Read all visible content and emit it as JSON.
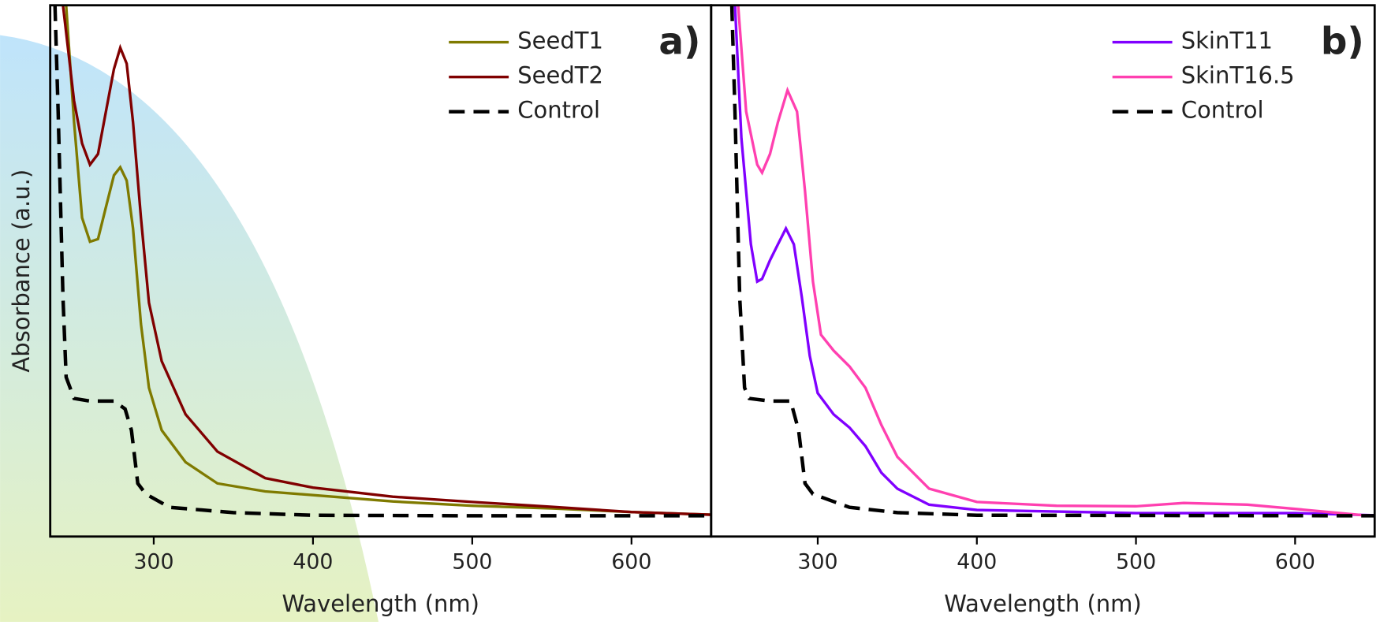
{
  "chart_data": [
    {
      "type": "line",
      "panel_label": "a)",
      "xlabel": "Wavelength (nm)",
      "ylabel": "Absorbance (a.u.)",
      "xlim": [
        235,
        650
      ],
      "ylim": [
        0,
        100
      ],
      "xticks": [
        300,
        400,
        500,
        600
      ],
      "legend": "upper right",
      "series": [
        {
          "name": "SeedT1",
          "color": "#7f7a00",
          "style": "solid",
          "x": [
            245,
            250,
            255,
            260,
            265,
            270,
            275,
            279,
            283,
            287,
            292,
            297,
            305,
            320,
            340,
            370,
            400,
            450,
            500,
            550,
            600,
            650
          ],
          "values": [
            100,
            78,
            60,
            55.5,
            56,
            62,
            68,
            69.5,
            67,
            58,
            40,
            28,
            20,
            14,
            10,
            8.5,
            7.8,
            6.6,
            5.8,
            5.3,
            4.6,
            4.1
          ]
        },
        {
          "name": "SeedT2",
          "color": "#800000",
          "style": "solid",
          "x": [
            243,
            250,
            255,
            260,
            265,
            270,
            275,
            279,
            283,
            287,
            292,
            297,
            305,
            320,
            340,
            370,
            400,
            450,
            500,
            550,
            600,
            650
          ],
          "values": [
            100,
            82,
            74,
            70,
            72,
            80,
            88,
            92,
            89,
            78,
            60,
            44,
            33,
            23,
            16,
            11,
            9.2,
            7.5,
            6.5,
            5.6,
            4.6,
            4.1
          ]
        },
        {
          "name": "Control",
          "color": "#000000",
          "style": "dashed",
          "x": [
            238,
            240,
            243,
            245,
            250,
            260,
            275,
            282,
            286,
            290,
            295,
            310,
            350,
            400,
            500,
            650
          ],
          "values": [
            100,
            80,
            45,
            30,
            26,
            25.5,
            25.5,
            24,
            20,
            10,
            8,
            5.5,
            4.5,
            4,
            3.9,
            3.9
          ]
        }
      ]
    },
    {
      "type": "line",
      "panel_label": "b)",
      "xlabel": "Wavelength (nm)",
      "xlim": [
        233,
        650
      ],
      "ylim": [
        0,
        100
      ],
      "xticks": [
        300,
        400,
        500,
        600
      ],
      "legend": "upper right",
      "series": [
        {
          "name": "SkinT11",
          "color": "#8000ff",
          "style": "solid",
          "x": [
            248,
            252,
            258,
            262,
            265,
            270,
            275,
            280,
            285,
            290,
            295,
            300,
            310,
            320,
            330,
            340,
            350,
            370,
            400,
            500,
            600,
            650
          ],
          "values": [
            100,
            75,
            55,
            48,
            48.5,
            52,
            55,
            58,
            55,
            45,
            34,
            27,
            23,
            20.5,
            17,
            12,
            9,
            6,
            5,
            4.4,
            4.4,
            4
          ]
        },
        {
          "name": "SkinT16.5",
          "color": "#ff40b0",
          "style": "solid",
          "x": [
            250,
            255,
            262,
            265,
            270,
            275,
            281,
            287,
            292,
            297,
            302,
            310,
            320,
            330,
            340,
            350,
            370,
            400,
            450,
            500,
            530,
            570,
            600,
            650
          ],
          "values": [
            100,
            80,
            70,
            68.5,
            72,
            78,
            84,
            80,
            65,
            48,
            38,
            35,
            32,
            28,
            21,
            15,
            9,
            6.5,
            5.8,
            5.7,
            6.3,
            6,
            5.2,
            3.8
          ]
        },
        {
          "name": "Control",
          "color": "#000000",
          "style": "dashed",
          "x": [
            246,
            248,
            251,
            254,
            257,
            270,
            283,
            288,
            292,
            297,
            320,
            350,
            400,
            650
          ],
          "values": [
            100,
            80,
            45,
            28,
            26,
            25.5,
            25.5,
            20,
            10,
            8,
            5.5,
            4.5,
            4,
            3.9
          ]
        }
      ]
    }
  ]
}
